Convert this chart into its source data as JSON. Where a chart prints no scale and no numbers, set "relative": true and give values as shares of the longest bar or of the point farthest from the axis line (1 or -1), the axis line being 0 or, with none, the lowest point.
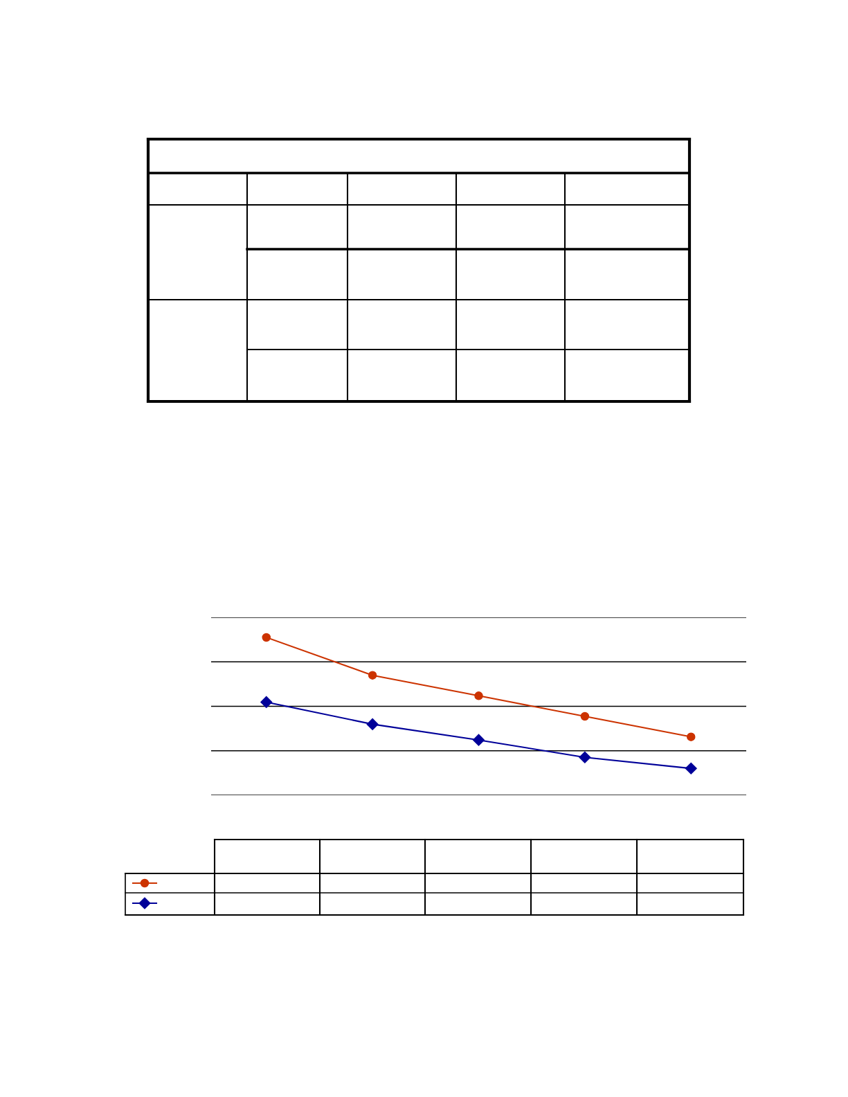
{
  "chart_data": {
    "type": "line",
    "relative": true,
    "grid": "y",
    "legend": false,
    "categories": [
      null,
      null,
      null,
      null,
      null
    ],
    "series": [
      {
        "color": "#cc3300",
        "marker": "circle",
        "values": [
          1,
          0.76,
          0.63,
          0.5,
          0.37
        ]
      },
      {
        "color": "#000099",
        "marker": "diamond",
        "values": [
          0.59,
          0.45,
          0.35,
          0.24,
          0.17
        ]
      }
    ]
  }
}
